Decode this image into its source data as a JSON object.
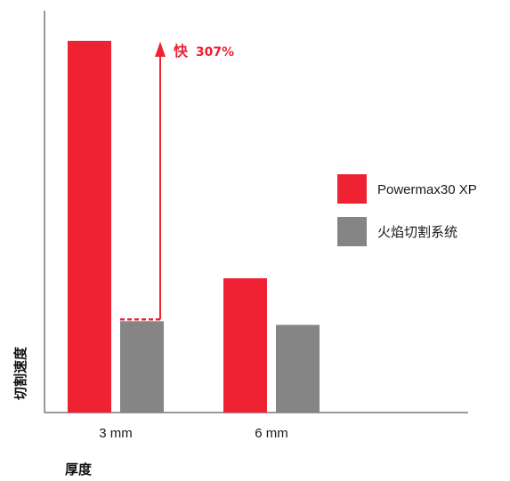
{
  "chart_data": {
    "type": "bar",
    "title": "",
    "xlabel": "厚度",
    "ylabel": "切割速度",
    "categories": [
      "3 mm",
      "6 mm"
    ],
    "series": [
      {
        "name": "Powermax30 XP",
        "color": "#ee2233",
        "values": [
          4.07,
          1.47
        ]
      },
      {
        "name": "火焰切割系统",
        "color": "#858585",
        "values": [
          1.0,
          0.96
        ]
      }
    ],
    "ylim": [
      0,
      4.4
    ],
    "grid": false,
    "legend": "right",
    "annotation": {
      "prefix": "快",
      "value": "307%",
      "category": "3 mm",
      "color": "#ee2233"
    }
  }
}
